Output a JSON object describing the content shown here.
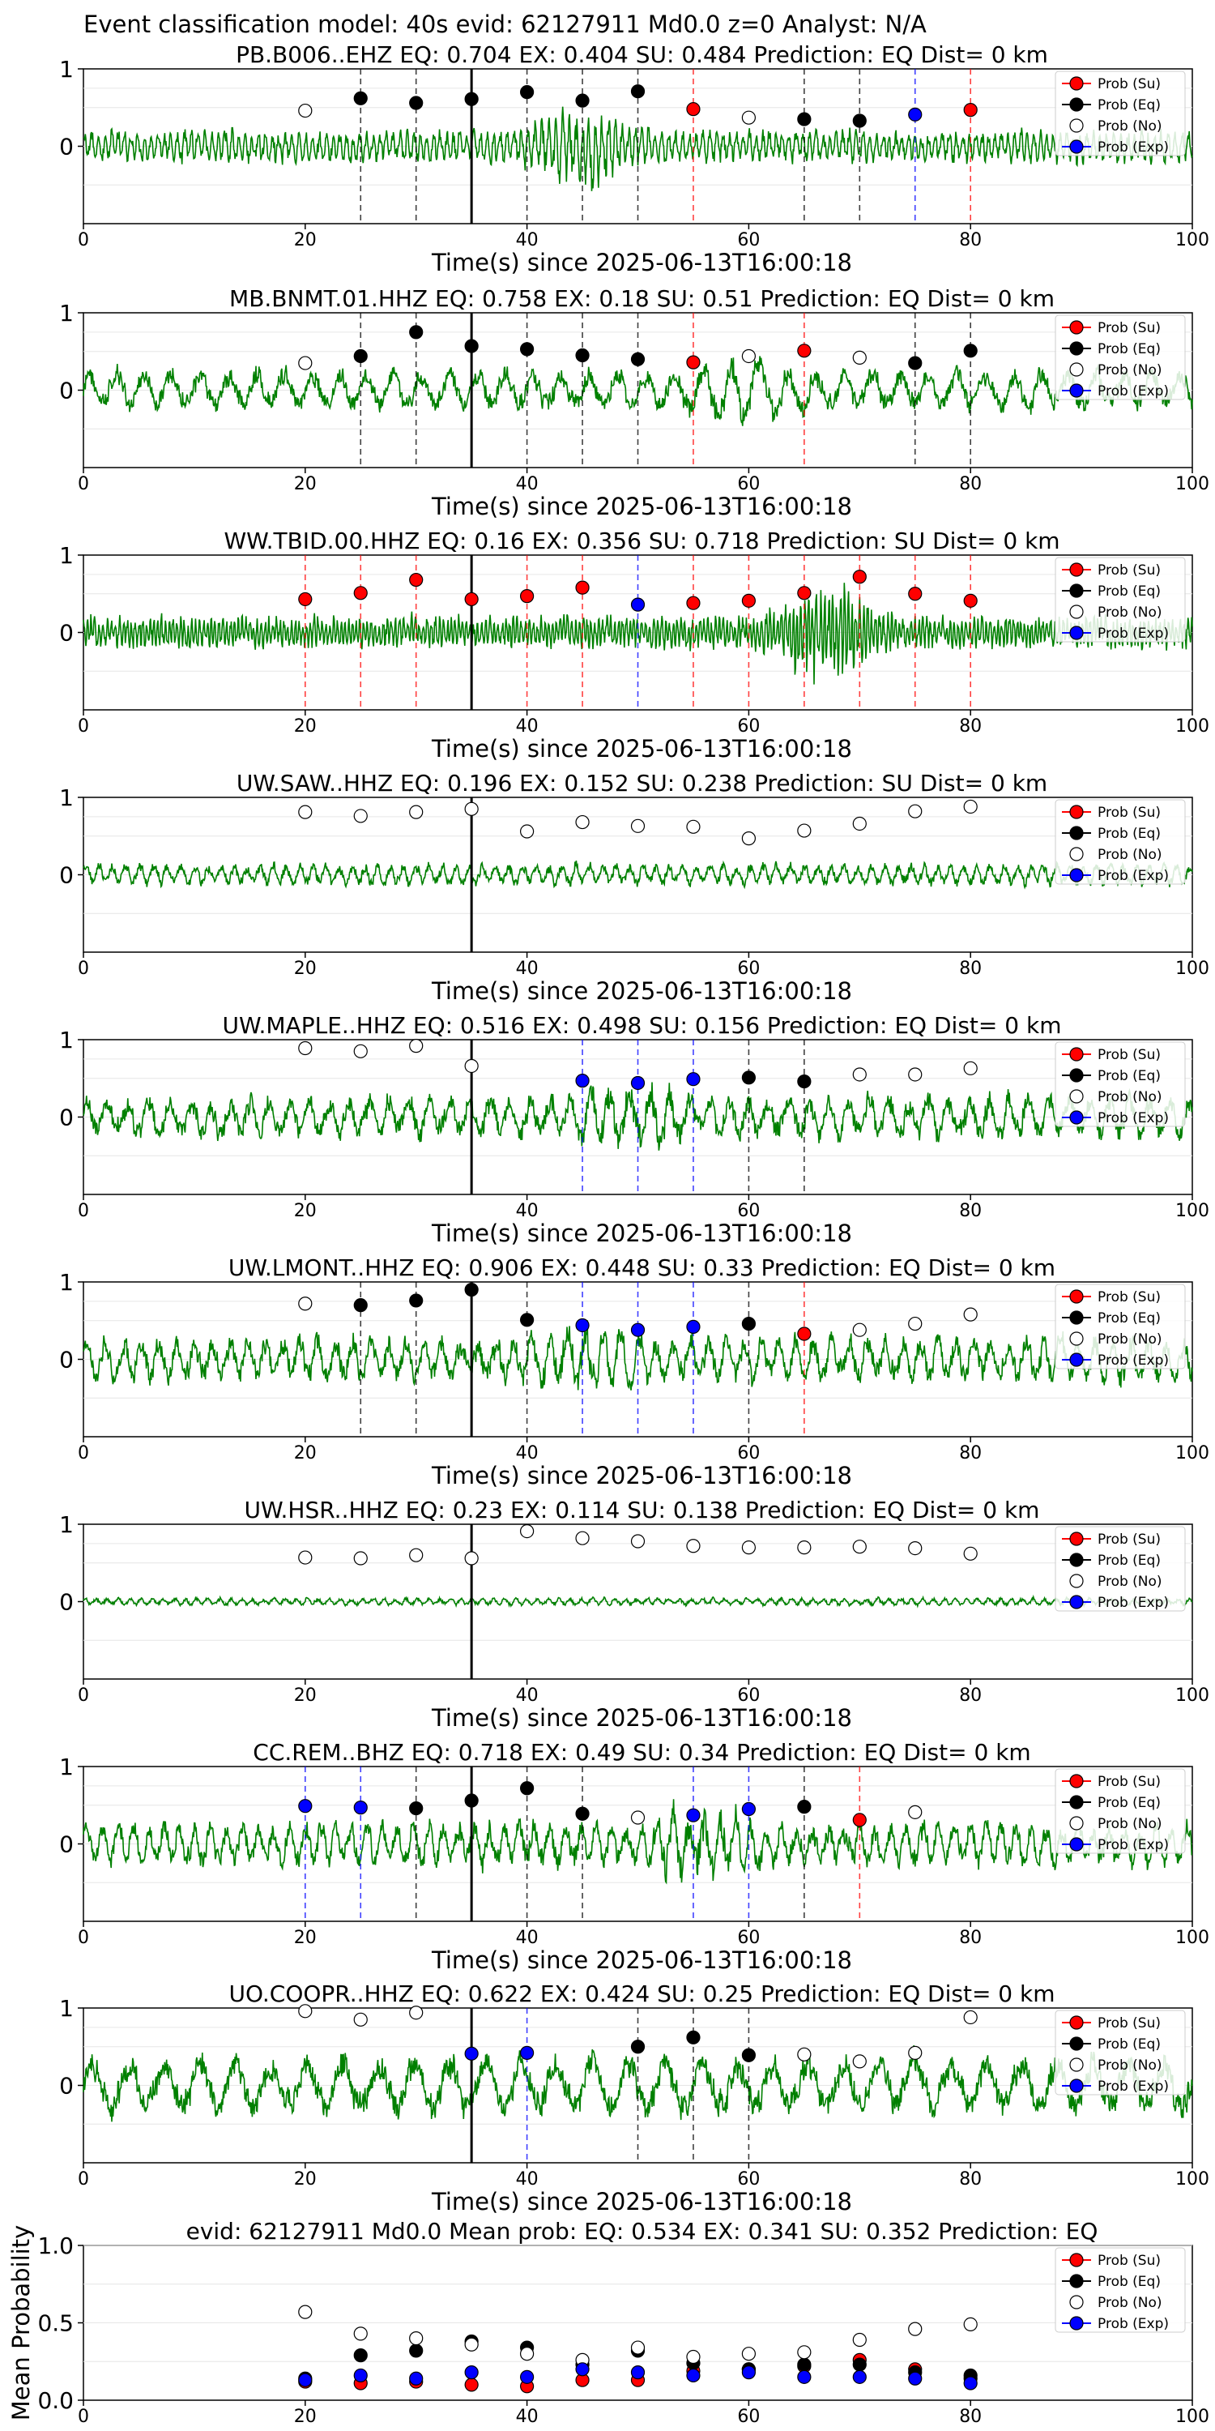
{
  "suptitle": "Event classification model: 40s evid: 62127911 Md0.0 z=0 Analyst: N/A",
  "legend_labels": [
    "Prob (Su)",
    "Prob (Eq)",
    "Prob (No)",
    "Prob (Exp)"
  ],
  "colors": {
    "waveform": "#008000",
    "su": "#ff0000",
    "eq": "#000000",
    "no": "#ffffff",
    "exp": "#0000ff",
    "origin_line": "#000000"
  },
  "chart_data": [
    {
      "type": "line",
      "title": "PB.B006..EHZ   EQ: 0.704  EX: 0.404  SU: 0.484   Prediction: EQ    Dist= 0 km",
      "xlabel": "Time(s) since 2025-06-13T16:00:18",
      "xlim": [
        0,
        100
      ],
      "ylim": [
        -1,
        1
      ],
      "xticks": [
        0,
        20,
        40,
        60,
        80,
        100
      ],
      "yticks": [
        1,
        0
      ],
      "grid": "horizontal",
      "legend_position": "top-right",
      "origin_time": 35,
      "waveform": {
        "amplitude": 0.22,
        "period": 0.6,
        "burst_center": 45,
        "burst_amp": 0.35
      },
      "windows": [
        {
          "t": 20,
          "cls": "no",
          "p": 0.46
        },
        {
          "t": 25,
          "cls": "eq",
          "p": 0.62
        },
        {
          "t": 30,
          "cls": "eq",
          "p": 0.56
        },
        {
          "t": 35,
          "cls": "eq",
          "p": 0.61
        },
        {
          "t": 40,
          "cls": "eq",
          "p": 0.7
        },
        {
          "t": 45,
          "cls": "eq",
          "p": 0.59
        },
        {
          "t": 50,
          "cls": "eq",
          "p": 0.71
        },
        {
          "t": 55,
          "cls": "su",
          "p": 0.48
        },
        {
          "t": 60,
          "cls": "no",
          "p": 0.37
        },
        {
          "t": 65,
          "cls": "eq",
          "p": 0.35
        },
        {
          "t": 70,
          "cls": "eq",
          "p": 0.33
        },
        {
          "t": 75,
          "cls": "exp",
          "p": 0.41
        },
        {
          "t": 80,
          "cls": "su",
          "p": 0.47
        }
      ]
    },
    {
      "type": "line",
      "title": "MB.BNMT.01.HHZ   EQ: 0.758  EX: 0.18  SU: 0.51   Prediction: EQ    Dist= 0 km",
      "xlabel": "Time(s) since 2025-06-13T16:00:18",
      "xlim": [
        0,
        100
      ],
      "ylim": [
        -1,
        1
      ],
      "xticks": [
        0,
        20,
        40,
        60,
        80,
        100
      ],
      "yticks": [
        1,
        0
      ],
      "grid": "horizontal",
      "legend_position": "top-right",
      "origin_time": 35,
      "waveform": {
        "amplitude": 0.28,
        "period": 2.5,
        "burst_center": 60,
        "burst_amp": 0.2
      },
      "windows": [
        {
          "t": 20,
          "cls": "no",
          "p": 0.35
        },
        {
          "t": 25,
          "cls": "eq",
          "p": 0.44
        },
        {
          "t": 30,
          "cls": "eq",
          "p": 0.75
        },
        {
          "t": 35,
          "cls": "eq",
          "p": 0.57
        },
        {
          "t": 40,
          "cls": "eq",
          "p": 0.53
        },
        {
          "t": 45,
          "cls": "eq",
          "p": 0.45
        },
        {
          "t": 50,
          "cls": "eq",
          "p": 0.4
        },
        {
          "t": 55,
          "cls": "su",
          "p": 0.36
        },
        {
          "t": 60,
          "cls": "no",
          "p": 0.44
        },
        {
          "t": 65,
          "cls": "su",
          "p": 0.51
        },
        {
          "t": 70,
          "cls": "no",
          "p": 0.42
        },
        {
          "t": 75,
          "cls": "eq",
          "p": 0.35
        },
        {
          "t": 80,
          "cls": "eq",
          "p": 0.51
        }
      ]
    },
    {
      "type": "line",
      "title": "WW.TBID.00.HHZ   EQ: 0.16  EX: 0.356  SU: 0.718   Prediction: SU    Dist= 0 km",
      "xlabel": "Time(s) since 2025-06-13T16:00:18",
      "xlim": [
        0,
        100
      ],
      "ylim": [
        -1,
        1
      ],
      "xticks": [
        0,
        20,
        40,
        60,
        80,
        100
      ],
      "yticks": [
        1,
        0
      ],
      "grid": "horizontal",
      "legend_position": "top-right",
      "origin_time": 35,
      "waveform": {
        "amplitude": 0.22,
        "period": 0.35,
        "burst_center": 67,
        "burst_amp": 0.45
      },
      "windows": [
        {
          "t": 20,
          "cls": "su",
          "p": 0.43
        },
        {
          "t": 25,
          "cls": "su",
          "p": 0.51
        },
        {
          "t": 30,
          "cls": "su",
          "p": 0.68
        },
        {
          "t": 35,
          "cls": "su",
          "p": 0.43
        },
        {
          "t": 40,
          "cls": "su",
          "p": 0.47
        },
        {
          "t": 45,
          "cls": "su",
          "p": 0.58
        },
        {
          "t": 50,
          "cls": "exp",
          "p": 0.36
        },
        {
          "t": 55,
          "cls": "su",
          "p": 0.38
        },
        {
          "t": 60,
          "cls": "su",
          "p": 0.41
        },
        {
          "t": 65,
          "cls": "su",
          "p": 0.51
        },
        {
          "t": 70,
          "cls": "su",
          "p": 0.72
        },
        {
          "t": 75,
          "cls": "su",
          "p": 0.5
        },
        {
          "t": 80,
          "cls": "su",
          "p": 0.41
        }
      ]
    },
    {
      "type": "line",
      "title": "UW.SAW..HHZ   EQ: 0.196  EX: 0.152  SU: 0.238   Prediction: SU    Dist= 0 km",
      "xlabel": "Time(s) since 2025-06-13T16:00:18",
      "xlim": [
        0,
        100
      ],
      "ylim": [
        -1,
        1
      ],
      "xticks": [
        0,
        20,
        40,
        60,
        80,
        100
      ],
      "yticks": [
        1,
        0
      ],
      "grid": "horizontal",
      "legend_position": "top-right",
      "origin_time": 35,
      "waveform": {
        "amplitude": 0.15,
        "period": 1.2,
        "burst_center": 0,
        "burst_amp": 0
      },
      "windows": [
        {
          "t": 20,
          "cls": "no",
          "p": 0.81
        },
        {
          "t": 25,
          "cls": "no",
          "p": 0.76
        },
        {
          "t": 30,
          "cls": "no",
          "p": 0.81
        },
        {
          "t": 35,
          "cls": "no",
          "p": 0.85
        },
        {
          "t": 40,
          "cls": "no",
          "p": 0.56
        },
        {
          "t": 45,
          "cls": "no",
          "p": 0.68
        },
        {
          "t": 50,
          "cls": "no",
          "p": 0.63
        },
        {
          "t": 55,
          "cls": "no",
          "p": 0.62
        },
        {
          "t": 60,
          "cls": "no",
          "p": 0.47
        },
        {
          "t": 65,
          "cls": "no",
          "p": 0.57
        },
        {
          "t": 70,
          "cls": "no",
          "p": 0.66
        },
        {
          "t": 75,
          "cls": "no",
          "p": 0.82
        },
        {
          "t": 80,
          "cls": "no",
          "p": 0.88
        }
      ]
    },
    {
      "type": "line",
      "title": "UW.MAPLE..HHZ   EQ: 0.516  EX: 0.498  SU: 0.156   Prediction: EQ    Dist= 0 km",
      "xlabel": "Time(s) since 2025-06-13T16:00:18",
      "xlim": [
        0,
        100
      ],
      "ylim": [
        -1,
        1
      ],
      "xticks": [
        0,
        20,
        40,
        60,
        80,
        100
      ],
      "yticks": [
        1,
        0
      ],
      "grid": "horizontal",
      "legend_position": "top-right",
      "origin_time": 35,
      "waveform": {
        "amplitude": 0.3,
        "period": 1.8,
        "burst_center": 50,
        "burst_amp": 0.2
      },
      "windows": [
        {
          "t": 20,
          "cls": "no",
          "p": 0.89
        },
        {
          "t": 25,
          "cls": "no",
          "p": 0.85
        },
        {
          "t": 30,
          "cls": "no",
          "p": 0.92
        },
        {
          "t": 35,
          "cls": "no",
          "p": 0.66
        },
        {
          "t": 45,
          "cls": "exp",
          "p": 0.47
        },
        {
          "t": 50,
          "cls": "exp",
          "p": 0.44
        },
        {
          "t": 55,
          "cls": "exp",
          "p": 0.49
        },
        {
          "t": 60,
          "cls": "eq",
          "p": 0.51
        },
        {
          "t": 65,
          "cls": "eq",
          "p": 0.46
        },
        {
          "t": 70,
          "cls": "no",
          "p": 0.55
        },
        {
          "t": 75,
          "cls": "no",
          "p": 0.55
        },
        {
          "t": 80,
          "cls": "no",
          "p": 0.63
        }
      ]
    },
    {
      "type": "line",
      "title": "UW.LMONT..HHZ   EQ: 0.906  EX: 0.448  SU: 0.33   Prediction: EQ    Dist= 0 km",
      "xlabel": "Time(s) since 2025-06-13T16:00:18",
      "xlim": [
        0,
        100
      ],
      "ylim": [
        -1,
        1
      ],
      "xticks": [
        0,
        20,
        40,
        60,
        80,
        100
      ],
      "yticks": [
        1,
        0
      ],
      "grid": "horizontal",
      "legend_position": "top-right",
      "origin_time": 35,
      "waveform": {
        "amplitude": 0.32,
        "period": 1.6,
        "burst_center": 45,
        "burst_amp": 0.2
      },
      "windows": [
        {
          "t": 20,
          "cls": "no",
          "p": 0.72
        },
        {
          "t": 25,
          "cls": "eq",
          "p": 0.7
        },
        {
          "t": 30,
          "cls": "eq",
          "p": 0.76
        },
        {
          "t": 35,
          "cls": "eq",
          "p": 0.9
        },
        {
          "t": 40,
          "cls": "eq",
          "p": 0.51
        },
        {
          "t": 45,
          "cls": "exp",
          "p": 0.44
        },
        {
          "t": 50,
          "cls": "exp",
          "p": 0.38
        },
        {
          "t": 55,
          "cls": "exp",
          "p": 0.42
        },
        {
          "t": 60,
          "cls": "eq",
          "p": 0.46
        },
        {
          "t": 65,
          "cls": "su",
          "p": 0.33
        },
        {
          "t": 70,
          "cls": "no",
          "p": 0.38
        },
        {
          "t": 75,
          "cls": "no",
          "p": 0.46
        },
        {
          "t": 80,
          "cls": "no",
          "p": 0.58
        }
      ]
    },
    {
      "type": "line",
      "title": "UW.HSR..HHZ   EQ: 0.23  EX: 0.114  SU: 0.138   Prediction: EQ    Dist= 0 km",
      "xlabel": "Time(s) since 2025-06-13T16:00:18",
      "xlim": [
        0,
        100
      ],
      "ylim": [
        -1,
        1
      ],
      "xticks": [
        0,
        20,
        40,
        60,
        80,
        100
      ],
      "yticks": [
        1,
        0
      ],
      "grid": "horizontal",
      "legend_position": "top-right",
      "origin_time": 35,
      "waveform": {
        "amplitude": 0.05,
        "period": 1.0,
        "burst_center": 0,
        "burst_amp": 0
      },
      "windows": [
        {
          "t": 20,
          "cls": "no",
          "p": 0.57
        },
        {
          "t": 25,
          "cls": "no",
          "p": 0.56
        },
        {
          "t": 30,
          "cls": "no",
          "p": 0.6
        },
        {
          "t": 35,
          "cls": "no",
          "p": 0.56
        },
        {
          "t": 40,
          "cls": "no",
          "p": 0.91
        },
        {
          "t": 45,
          "cls": "no",
          "p": 0.82
        },
        {
          "t": 50,
          "cls": "no",
          "p": 0.78
        },
        {
          "t": 55,
          "cls": "no",
          "p": 0.72
        },
        {
          "t": 60,
          "cls": "no",
          "p": 0.7
        },
        {
          "t": 65,
          "cls": "no",
          "p": 0.7
        },
        {
          "t": 70,
          "cls": "no",
          "p": 0.71
        },
        {
          "t": 75,
          "cls": "no",
          "p": 0.69
        },
        {
          "t": 80,
          "cls": "no",
          "p": 0.62
        }
      ]
    },
    {
      "type": "line",
      "title": "CC.REM..BHZ   EQ: 0.718  EX: 0.49  SU: 0.34   Prediction: EQ    Dist= 0 km",
      "xlabel": "Time(s) since 2025-06-13T16:00:18",
      "xlim": [
        0,
        100
      ],
      "ylim": [
        -1,
        1
      ],
      "xticks": [
        0,
        20,
        40,
        60,
        80,
        100
      ],
      "yticks": [
        1,
        0
      ],
      "grid": "horizontal",
      "legend_position": "top-right",
      "origin_time": 35,
      "waveform": {
        "amplitude": 0.3,
        "period": 1.4,
        "burst_center": 55,
        "burst_amp": 0.25
      },
      "windows": [
        {
          "t": 20,
          "cls": "exp",
          "p": 0.49
        },
        {
          "t": 25,
          "cls": "exp",
          "p": 0.47
        },
        {
          "t": 30,
          "cls": "eq",
          "p": 0.46
        },
        {
          "t": 35,
          "cls": "eq",
          "p": 0.56
        },
        {
          "t": 40,
          "cls": "eq",
          "p": 0.72
        },
        {
          "t": 45,
          "cls": "eq",
          "p": 0.39
        },
        {
          "t": 50,
          "cls": "no",
          "p": 0.34
        },
        {
          "t": 55,
          "cls": "exp",
          "p": 0.37
        },
        {
          "t": 60,
          "cls": "exp",
          "p": 0.45
        },
        {
          "t": 65,
          "cls": "eq",
          "p": 0.48
        },
        {
          "t": 70,
          "cls": "su",
          "p": 0.31
        },
        {
          "t": 75,
          "cls": "no",
          "p": 0.41
        }
      ]
    },
    {
      "type": "line",
      "title": "UO.COOPR..HHZ   EQ: 0.622  EX: 0.424  SU: 0.25   Prediction: EQ    Dist= 0 km",
      "xlabel": "Time(s) since 2025-06-13T16:00:18",
      "xlim": [
        0,
        100
      ],
      "ylim": [
        -1,
        1
      ],
      "xticks": [
        0,
        20,
        40,
        60,
        80,
        100
      ],
      "yticks": [
        1,
        0
      ],
      "grid": "horizontal",
      "legend_position": "top-right",
      "origin_time": 35,
      "waveform": {
        "amplitude": 0.4,
        "period": 3.2,
        "burst_center": 0,
        "burst_amp": 0
      },
      "windows": [
        {
          "t": 20,
          "cls": "no",
          "p": 0.96
        },
        {
          "t": 25,
          "cls": "no",
          "p": 0.85
        },
        {
          "t": 30,
          "cls": "no",
          "p": 0.94
        },
        {
          "t": 35,
          "cls": "exp",
          "p": 0.41
        },
        {
          "t": 40,
          "cls": "exp",
          "p": 0.42
        },
        {
          "t": 50,
          "cls": "eq",
          "p": 0.5
        },
        {
          "t": 55,
          "cls": "eq",
          "p": 0.62
        },
        {
          "t": 60,
          "cls": "eq",
          "p": 0.39
        },
        {
          "t": 65,
          "cls": "no",
          "p": 0.4
        },
        {
          "t": 70,
          "cls": "no",
          "p": 0.31
        },
        {
          "t": 75,
          "cls": "no",
          "p": 0.42
        },
        {
          "t": 80,
          "cls": "no",
          "p": 0.88
        }
      ]
    },
    {
      "type": "scatter",
      "title": "evid: 62127911  Md0.0   Mean prob:    EQ: 0.534  EX: 0.341  SU: 0.352   Prediction: EQ",
      "ylabel": "Mean Probability",
      "xlim": [
        0,
        100
      ],
      "ylim": [
        0,
        1
      ],
      "xticks": [
        0,
        20,
        40,
        60,
        80,
        100
      ],
      "yticks": [
        0.0,
        0.5,
        1.0
      ],
      "grid": "horizontal",
      "legend_position": "top-right",
      "x": [
        20,
        25,
        30,
        35,
        40,
        45,
        50,
        55,
        60,
        65,
        70,
        75,
        80
      ],
      "series": [
        {
          "name": "Prob (Su)",
          "cls": "su",
          "values": [
            0.12,
            0.11,
            0.12,
            0.1,
            0.09,
            0.13,
            0.13,
            0.19,
            0.2,
            0.22,
            0.26,
            0.2,
            0.14
          ]
        },
        {
          "name": "Prob (Eq)",
          "cls": "eq",
          "values": [
            0.14,
            0.29,
            0.32,
            0.38,
            0.34,
            0.23,
            0.32,
            0.24,
            0.2,
            0.23,
            0.23,
            0.18,
            0.16
          ]
        },
        {
          "name": "Prob (No)",
          "cls": "no",
          "values": [
            0.57,
            0.43,
            0.4,
            0.36,
            0.3,
            0.26,
            0.34,
            0.28,
            0.3,
            0.31,
            0.39,
            0.46,
            0.49
          ]
        },
        {
          "name": "Prob (Exp)",
          "cls": "exp",
          "values": [
            0.13,
            0.16,
            0.14,
            0.18,
            0.15,
            0.2,
            0.18,
            0.16,
            0.18,
            0.15,
            0.15,
            0.14,
            0.11
          ]
        }
      ]
    }
  ]
}
